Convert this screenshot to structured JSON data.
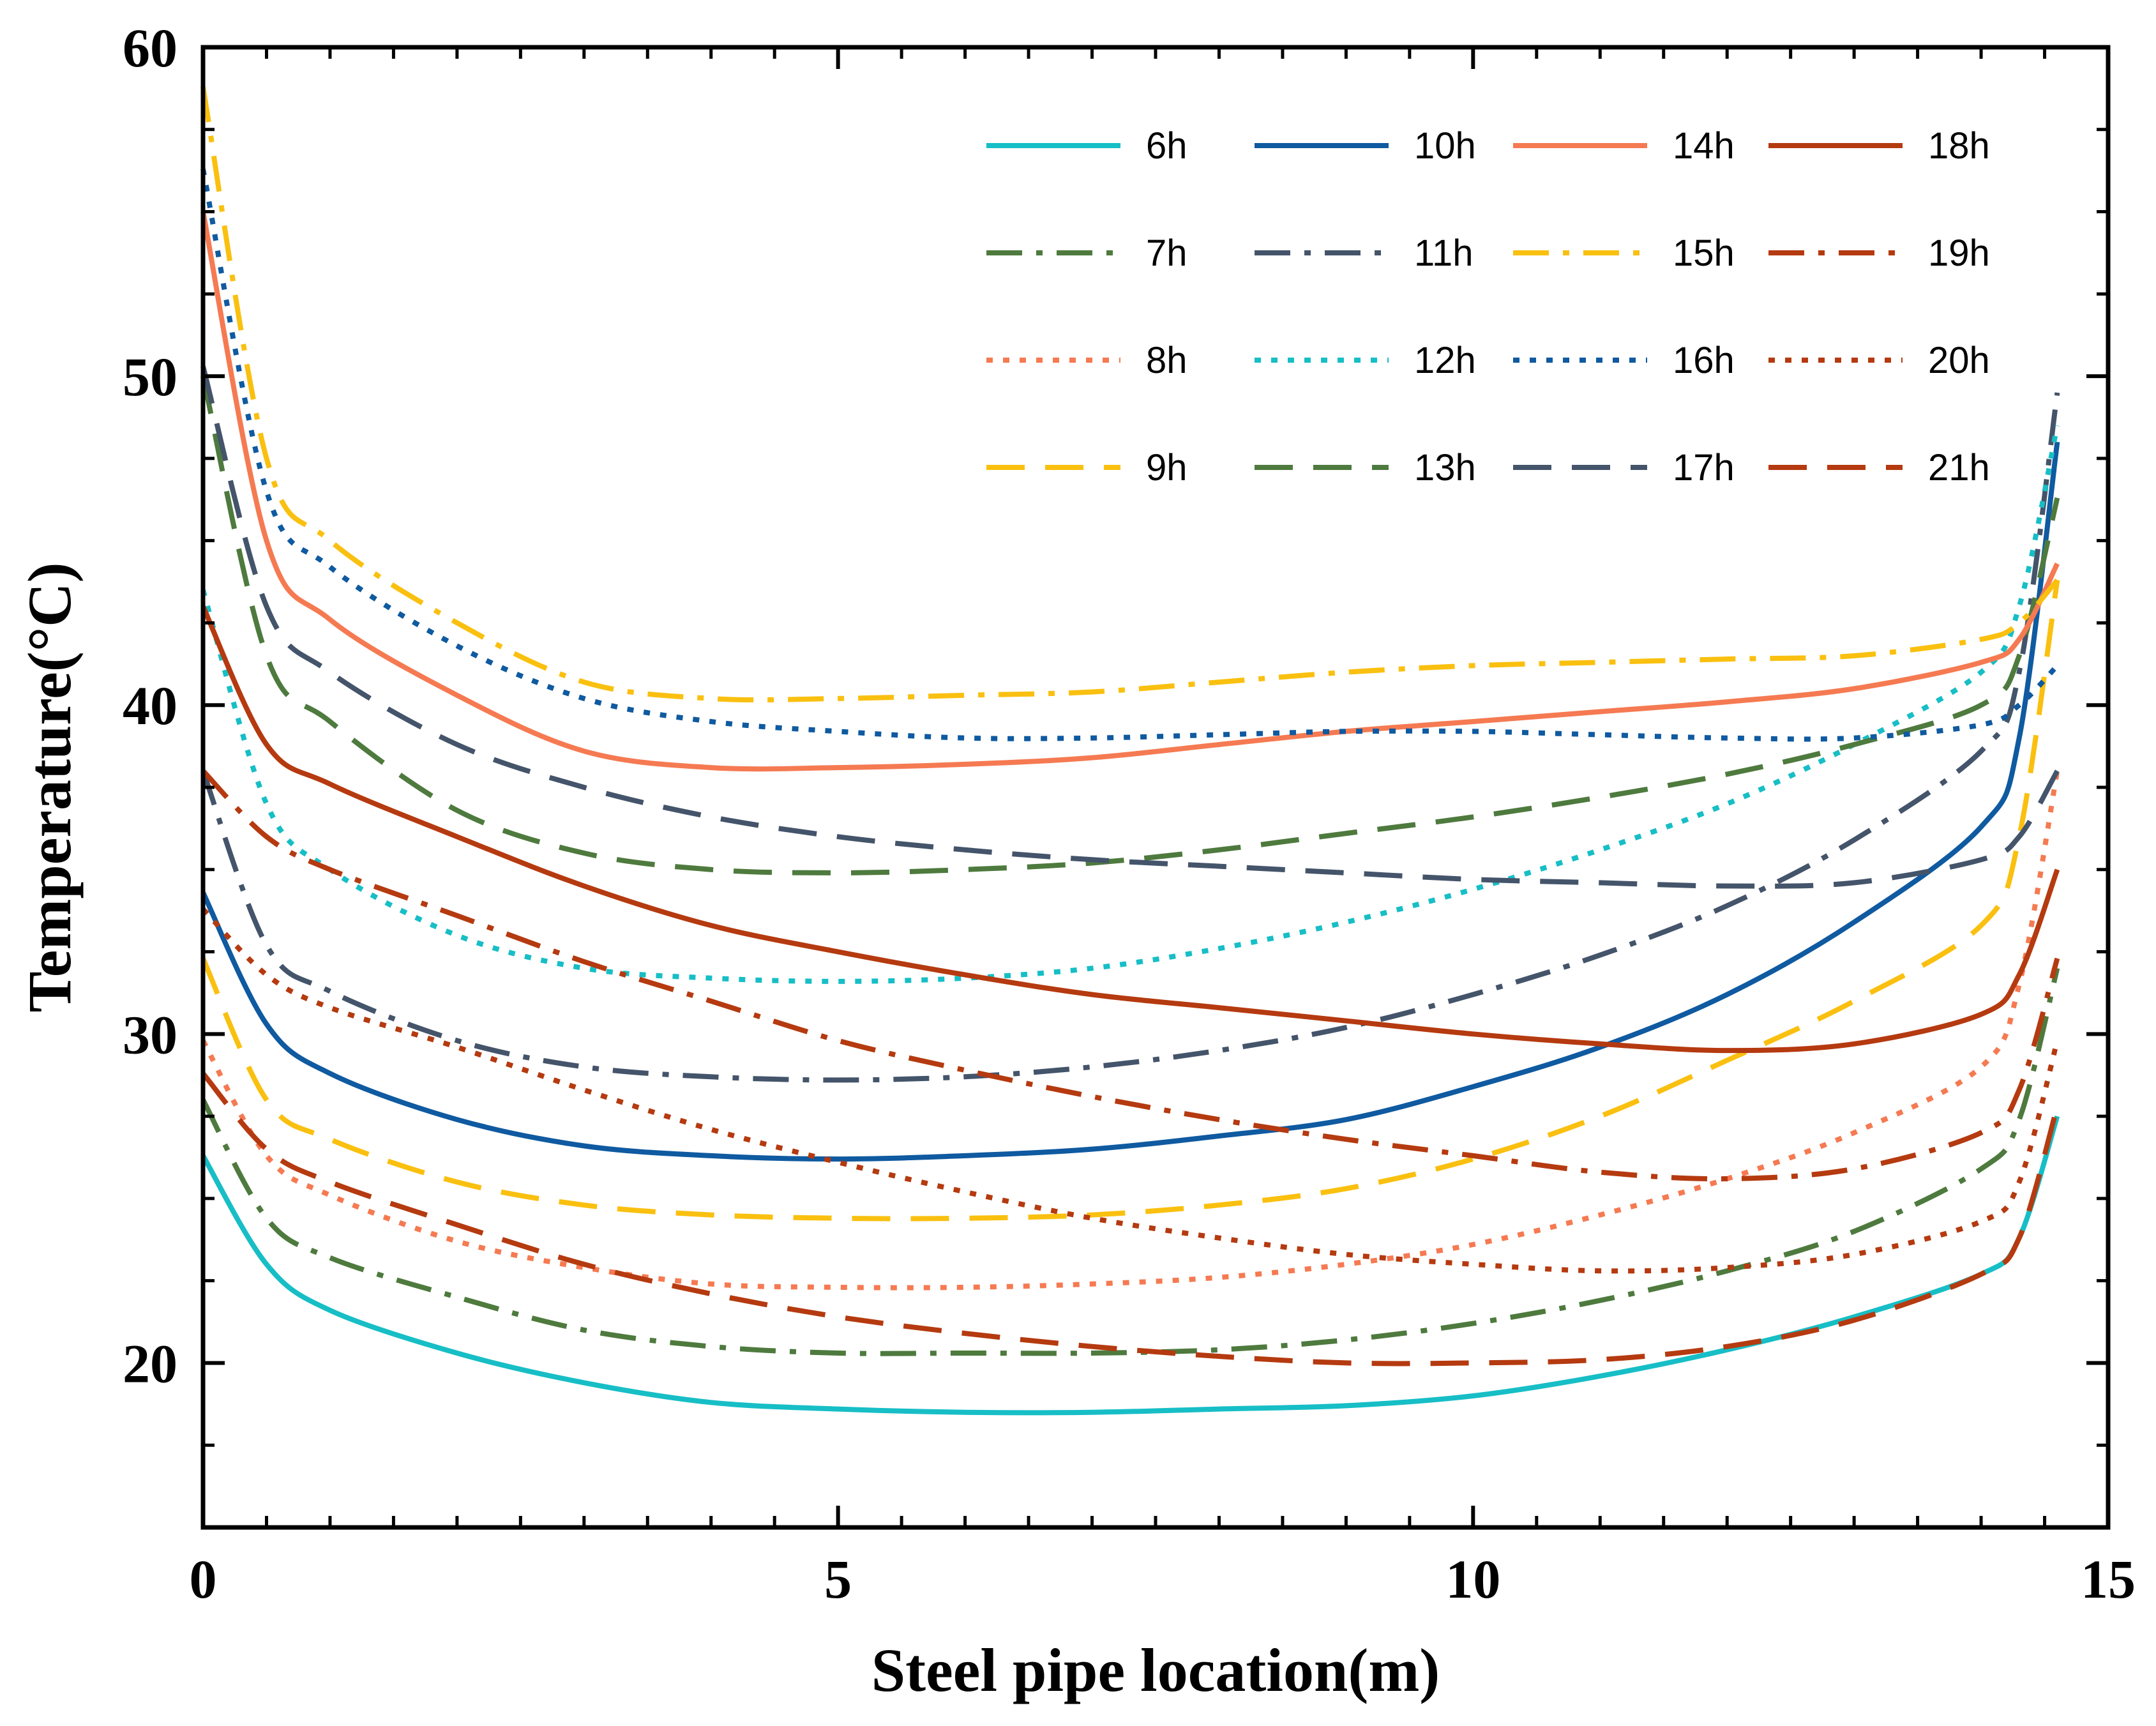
{
  "chart_data": {
    "type": "line",
    "title": "",
    "xlabel": "Steel pipe location(m)",
    "ylabel": "Temperature(°C)",
    "xlim": [
      0,
      15
    ],
    "ylim": [
      15,
      60
    ],
    "x_ticks": [
      0,
      5,
      10,
      15
    ],
    "x_tick_labels": [
      "0",
      "5",
      "10",
      "15"
    ],
    "y_ticks": [
      20,
      30,
      40,
      50,
      60
    ],
    "y_tick_labels": [
      "20",
      "30",
      "40",
      "50",
      "60"
    ],
    "grid": false,
    "legend_position": "top-right",
    "series": [
      {
        "name": "6h",
        "color": "#17BEC6",
        "dash": "solid",
        "x": [
          0,
          0.5,
          1,
          2,
          3,
          4,
          5,
          6,
          7,
          8,
          9,
          10,
          11,
          12,
          13,
          14,
          14.3,
          14.6
        ],
        "y": [
          26.3,
          23.0,
          21.6,
          20.3,
          19.4,
          18.8,
          18.6,
          18.5,
          18.5,
          18.6,
          18.7,
          19.0,
          19.6,
          20.4,
          21.4,
          22.7,
          23.8,
          27.5
        ]
      },
      {
        "name": "7h",
        "color": "#4E7A3E",
        "dash": "dashdot",
        "x": [
          0,
          0.5,
          1,
          2,
          3,
          4,
          5,
          6,
          7,
          8,
          9,
          10,
          11,
          12,
          13,
          14,
          14.3,
          14.6
        ],
        "y": [
          28.0,
          24.4,
          23.2,
          22.0,
          21.0,
          20.5,
          20.3,
          20.3,
          20.3,
          20.4,
          20.7,
          21.2,
          21.9,
          22.8,
          24.0,
          25.9,
          27.4,
          32.0
        ]
      },
      {
        "name": "8h",
        "color": "#F57A52",
        "dash": "dot",
        "x": [
          0,
          0.5,
          1,
          2,
          3,
          4,
          5,
          6,
          7,
          8,
          9,
          10,
          11,
          12,
          13,
          14,
          14.3,
          14.6
        ],
        "y": [
          29.8,
          26.3,
          25.1,
          23.7,
          22.9,
          22.4,
          22.3,
          22.3,
          22.4,
          22.6,
          23.0,
          23.6,
          24.5,
          25.6,
          27.0,
          29.0,
          31.5,
          38.0
        ]
      },
      {
        "name": "9h",
        "color": "#FAC010",
        "dash": "dash",
        "x": [
          0,
          0.5,
          1,
          2,
          3,
          4,
          5,
          6,
          7,
          8,
          9,
          10,
          11,
          12,
          13,
          14,
          14.3,
          14.6
        ],
        "y": [
          32.3,
          28.0,
          26.8,
          25.5,
          24.8,
          24.5,
          24.4,
          24.4,
          24.5,
          24.8,
          25.3,
          26.2,
          27.5,
          29.2,
          31.0,
          33.3,
          36.0,
          43.8
        ]
      },
      {
        "name": "10h",
        "color": "#0F5AA0",
        "dash": "solid",
        "x": [
          0,
          0.5,
          1,
          2,
          3,
          4,
          5,
          6,
          7,
          8,
          9,
          10,
          11,
          12,
          13,
          14,
          14.3,
          14.6
        ],
        "y": [
          34.3,
          30.3,
          28.8,
          27.4,
          26.6,
          26.3,
          26.2,
          26.3,
          26.5,
          26.9,
          27.4,
          28.4,
          29.6,
          31.2,
          33.4,
          36.3,
          39.0,
          48.0
        ]
      },
      {
        "name": "11h",
        "color": "#44546A",
        "dash": "dashdot",
        "x": [
          0,
          0.5,
          1,
          2,
          3,
          4,
          5,
          6,
          7,
          8,
          9,
          10,
          11,
          12,
          13,
          14,
          14.3,
          14.6
        ],
        "y": [
          38.0,
          32.7,
          31.3,
          29.8,
          29.0,
          28.7,
          28.6,
          28.7,
          29.0,
          29.5,
          30.2,
          31.2,
          32.4,
          33.9,
          35.9,
          38.6,
          41.0,
          49.5
        ]
      },
      {
        "name": "12h",
        "color": "#17BEC6",
        "dash": "dot",
        "x": [
          0,
          0.5,
          1,
          2,
          3,
          4,
          5,
          6,
          7,
          8,
          9,
          10,
          11,
          12,
          13,
          14,
          14.3,
          14.6
        ],
        "y": [
          43.5,
          37.0,
          35.0,
          33.0,
          32.0,
          31.7,
          31.6,
          31.7,
          32.0,
          32.6,
          33.4,
          34.4,
          35.6,
          37.0,
          38.8,
          41.0,
          43.0,
          48.5
        ]
      },
      {
        "name": "13h",
        "color": "#4E7A3E",
        "dash": "dash",
        "x": [
          0,
          0.5,
          1,
          2,
          3,
          4,
          5,
          6,
          7,
          8,
          9,
          10,
          11,
          12,
          13,
          14,
          14.3,
          14.6
        ],
        "y": [
          50.0,
          41.5,
          39.5,
          36.8,
          35.5,
          35.0,
          34.9,
          35.0,
          35.2,
          35.6,
          36.1,
          36.6,
          37.2,
          37.9,
          38.8,
          40.0,
          41.5,
          46.3
        ]
      },
      {
        "name": "14h",
        "color": "#F57A52",
        "dash": "solid",
        "x": [
          0,
          0.5,
          1,
          2,
          3,
          4,
          5,
          6,
          7,
          8,
          9,
          10,
          11,
          12,
          13,
          14,
          14.3,
          14.6
        ],
        "y": [
          55.0,
          45.0,
          42.6,
          40.3,
          38.6,
          38.1,
          38.1,
          38.2,
          38.4,
          38.8,
          39.2,
          39.5,
          39.8,
          40.1,
          40.5,
          41.3,
          42.0,
          44.3
        ]
      },
      {
        "name": "15h",
        "color": "#FAC010",
        "dash": "dashdot",
        "x": [
          0,
          0.5,
          1,
          2,
          3,
          4,
          5,
          6,
          7,
          8,
          9,
          10,
          11,
          12,
          13,
          14,
          14.3,
          14.6
        ],
        "y": [
          58.8,
          47.5,
          45.0,
          42.5,
          40.7,
          40.2,
          40.2,
          40.3,
          40.4,
          40.7,
          41.0,
          41.2,
          41.3,
          41.4,
          41.5,
          42.0,
          42.5,
          43.8
        ]
      },
      {
        "name": "16h",
        "color": "#0F5AA0",
        "dash": "dot",
        "x": [
          0,
          0.5,
          1,
          2,
          3,
          4,
          5,
          6,
          7,
          8,
          9,
          10,
          11,
          12,
          13,
          14,
          14.3,
          14.6
        ],
        "y": [
          56.3,
          46.5,
          44.2,
          41.8,
          40.2,
          39.5,
          39.2,
          39.0,
          39.0,
          39.1,
          39.2,
          39.2,
          39.1,
          39.0,
          39.0,
          39.4,
          40.0,
          41.2
        ]
      },
      {
        "name": "17h",
        "color": "#44546A",
        "dash": "dash",
        "x": [
          0,
          0.5,
          1,
          2,
          3,
          4,
          5,
          6,
          7,
          8,
          9,
          10,
          11,
          12,
          13,
          14,
          14.3,
          14.6
        ],
        "y": [
          50.3,
          43.0,
          41.0,
          38.8,
          37.5,
          36.6,
          36.0,
          35.6,
          35.3,
          35.1,
          34.9,
          34.7,
          34.6,
          34.5,
          34.6,
          35.3,
          36.0,
          38.0
        ]
      },
      {
        "name": "18h",
        "color": "#B53A10",
        "dash": "solid",
        "x": [
          0,
          0.5,
          1,
          2,
          3,
          4,
          5,
          6,
          7,
          8,
          9,
          10,
          11,
          12,
          13,
          14,
          14.3,
          14.6
        ],
        "y": [
          43.0,
          38.8,
          37.6,
          36.0,
          34.5,
          33.3,
          32.5,
          31.8,
          31.2,
          30.8,
          30.4,
          30.0,
          29.7,
          29.5,
          29.7,
          30.6,
          31.8,
          35.0
        ]
      },
      {
        "name": "19h",
        "color": "#B53A10",
        "dash": "dashdot",
        "x": [
          0,
          0.5,
          1,
          2,
          3,
          4,
          5,
          6,
          7,
          8,
          9,
          10,
          11,
          12,
          13,
          14,
          14.3,
          14.6
        ],
        "y": [
          38.0,
          36.0,
          35.0,
          33.6,
          32.2,
          31.0,
          29.8,
          28.9,
          28.1,
          27.4,
          26.8,
          26.3,
          25.8,
          25.6,
          25.9,
          27.0,
          28.3,
          32.3
        ]
      },
      {
        "name": "20h",
        "color": "#B53A10",
        "dash": "dot",
        "x": [
          0,
          0.5,
          1,
          2,
          3,
          4,
          5,
          6,
          7,
          8,
          9,
          10,
          11,
          12,
          13,
          14,
          14.3,
          14.6
        ],
        "y": [
          33.8,
          31.8,
          30.8,
          29.6,
          28.3,
          27.1,
          26.1,
          25.2,
          24.4,
          23.8,
          23.3,
          23.0,
          22.8,
          22.9,
          23.3,
          24.3,
          25.5,
          29.8
        ]
      },
      {
        "name": "21h",
        "color": "#B53A10",
        "dash": "dash",
        "x": [
          0,
          0.5,
          1,
          2,
          3,
          4,
          5,
          6,
          7,
          8,
          9,
          10,
          11,
          12,
          13,
          14,
          14.3,
          14.6
        ],
        "y": [
          28.8,
          26.5,
          25.5,
          24.2,
          23.0,
          22.1,
          21.4,
          20.9,
          20.5,
          20.2,
          20.0,
          20.0,
          20.1,
          20.5,
          21.3,
          22.7,
          23.8,
          27.8
        ]
      }
    ]
  }
}
